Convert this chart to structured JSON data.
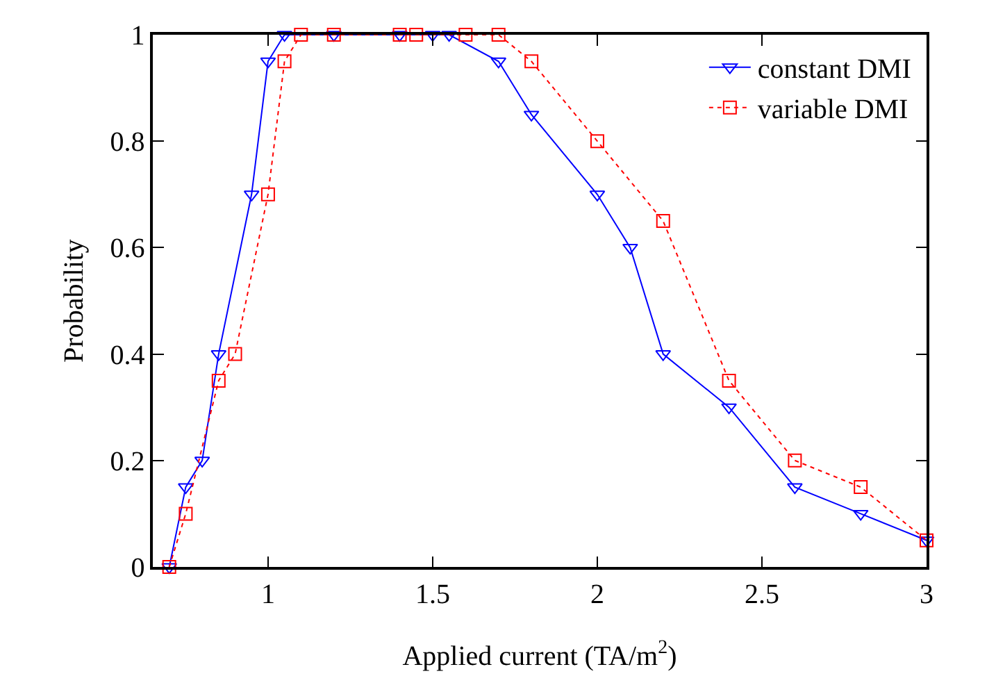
{
  "chart_data": {
    "type": "line",
    "xlabel": "Applied current (TA/m$^{2}$)",
    "ylabel": "Probability",
    "xlim": [
      0.65,
      3
    ],
    "xticks": [
      1,
      1.5,
      2,
      2.5,
      3
    ],
    "ylim": [
      0,
      1
    ],
    "yticks": [
      0,
      0.2,
      0.4,
      0.6,
      0.8,
      1
    ],
    "grid": false,
    "legend": "top right",
    "series": [
      {
        "name": "constant DMI",
        "color": "#0000ff",
        "marker": "triangle",
        "line_style": "solid",
        "x": [
          0.7,
          0.75,
          0.8,
          0.85,
          0.95,
          1.0,
          1.05,
          1.2,
          1.4,
          1.5,
          1.55,
          1.7,
          1.8,
          2.0,
          2.1,
          2.2,
          2.4,
          2.6,
          2.8,
          3.0
        ],
        "values": [
          0,
          0.15,
          0.2,
          0.4,
          0.7,
          0.95,
          1,
          1,
          1,
          1,
          1,
          0.95,
          0.85,
          0.7,
          0.6,
          0.4,
          0.3,
          0.15,
          0.1,
          0.05
        ]
      },
      {
        "name": "variable DMI",
        "color": "#ff0000",
        "marker": "square",
        "line_style": "dotted",
        "x": [
          0.7,
          0.75,
          0.85,
          0.9,
          1.0,
          1.05,
          1.1,
          1.2,
          1.4,
          1.45,
          1.6,
          1.7,
          1.8,
          2.0,
          2.2,
          2.4,
          2.6,
          2.8,
          3.0
        ],
        "values": [
          0,
          0.1,
          0.35,
          0.4,
          0.7,
          0.95,
          1,
          1,
          1,
          1,
          1,
          1,
          0.95,
          0.8,
          0.65,
          0.35,
          0.2,
          0.15,
          0.05
        ]
      }
    ]
  }
}
